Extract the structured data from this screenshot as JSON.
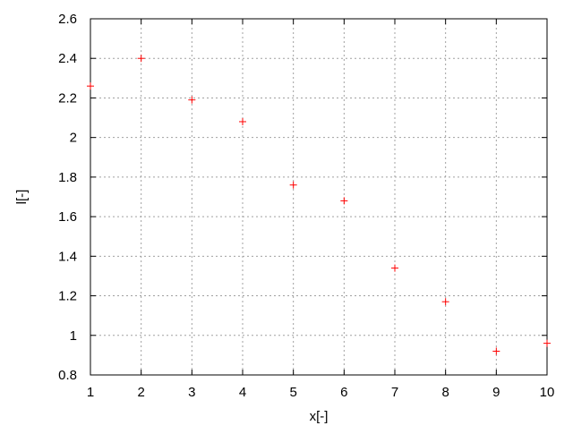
{
  "chart_data": {
    "type": "scatter",
    "title": "",
    "xlabel": "x[-]",
    "ylabel": "l[-]",
    "xlim": [
      1,
      10
    ],
    "ylim": [
      0.8,
      2.6
    ],
    "grid": true,
    "marker": "plus",
    "point_color": "#ff0000",
    "grid_color": "#a0a0a0",
    "x_ticks": [
      "1",
      "2",
      "3",
      "4",
      "5",
      "6",
      "7",
      "8",
      "9",
      "10"
    ],
    "y_ticks": [
      "0.8",
      "1",
      "1.2",
      "1.4",
      "1.6",
      "1.8",
      "2",
      "2.2",
      "2.4",
      "2.6"
    ],
    "x": [
      1,
      2,
      3,
      4,
      5,
      6,
      7,
      8,
      9,
      10
    ],
    "y": [
      2.26,
      2.4,
      2.19,
      2.08,
      1.76,
      1.68,
      1.34,
      1.17,
      0.92,
      0.96
    ]
  }
}
